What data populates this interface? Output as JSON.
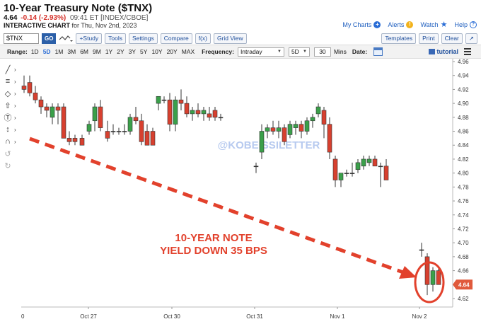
{
  "header": {
    "title": "10-Year Treasury Note ($TNX)",
    "last": "4.64",
    "change": "-0.14 (-2.93%)",
    "meta": "09:41 ET [INDEX/CBOE]",
    "chart_label": "INTERACTIVE CHART",
    "chart_date": "for Thu, Nov 2nd, 2023"
  },
  "top_links": {
    "my_charts": "My Charts",
    "alerts": "Alerts",
    "watch": "Watch",
    "help": "Help",
    "alert_glyph": "!",
    "help_glyph": "?"
  },
  "toolbar": {
    "symbol_value": "$TNX",
    "go_label": "GO",
    "study_label": "+Study",
    "tools_label": "Tools",
    "settings_label": "Settings",
    "compare_label": "Compare",
    "fx_label": "f(x)",
    "grid_view_label": "Grid View",
    "templates_label": "Templates",
    "print_label": "Print",
    "clear_label": "Clear",
    "expand_label": "↗"
  },
  "rangebar": {
    "range_label": "Range:",
    "ranges": [
      "1D",
      "5D",
      "1M",
      "3M",
      "6M",
      "9M",
      "1Y",
      "2Y",
      "3Y",
      "5Y",
      "10Y",
      "20Y",
      "MAX"
    ],
    "active_range": "5D",
    "frequency_label": "Frequency:",
    "frequency_value": "Intraday",
    "period_value": "5D",
    "interval_value": "30",
    "interval_unit": "Mins",
    "date_label": "Date:",
    "tutorial_label": "tutorial"
  },
  "side_tools": [
    {
      "name": "trendline-tool-icon",
      "glyph": "╱"
    },
    {
      "name": "fib-tool-icon",
      "glyph": "≡"
    },
    {
      "name": "shape-tool-icon",
      "glyph": "◇"
    },
    {
      "name": "arrow-tool-icon",
      "glyph": "⇧"
    },
    {
      "name": "text-tool-icon",
      "glyph": "Ⓣ"
    },
    {
      "name": "measure-tool-icon",
      "glyph": "↕"
    },
    {
      "name": "magnet-tool-icon",
      "glyph": "∩"
    },
    {
      "name": "undo-tool-icon",
      "glyph": "↺"
    },
    {
      "name": "redo-tool-icon",
      "glyph": "↻"
    }
  ],
  "chart_data": {
    "type": "candlestick",
    "y_ticks": [
      4.62,
      4.64,
      4.66,
      4.68,
      4.7,
      4.72,
      4.74,
      4.76,
      4.78,
      4.8,
      4.82,
      4.84,
      4.86,
      4.88,
      4.9,
      4.92,
      4.94,
      4.96
    ],
    "ylim": [
      4.61,
      4.97
    ],
    "x_labels": [
      "Oct 27",
      "Oct 30",
      "Oct 31",
      "Nov 1",
      "Nov 2"
    ],
    "x_first_label": "0",
    "last_price_badge": "4.64",
    "watermark": "@KOBEISSILETTER",
    "annotation_line1": "10-YEAR NOTE",
    "annotation_line2": "YIELD DOWN 35 BPS",
    "candles": [
      {
        "o": 4.925,
        "h": 4.94,
        "l": 4.915,
        "c": 4.92
      },
      {
        "o": 4.93,
        "h": 4.94,
        "l": 4.91,
        "c": 4.915
      },
      {
        "o": 4.915,
        "h": 4.925,
        "l": 4.9,
        "c": 4.905
      },
      {
        "o": 4.905,
        "h": 4.91,
        "l": 4.885,
        "c": 4.895
      },
      {
        "o": 4.895,
        "h": 4.9,
        "l": 4.88,
        "c": 4.89
      },
      {
        "o": 4.88,
        "h": 4.9,
        "l": 4.87,
        "c": 4.895
      },
      {
        "o": 4.895,
        "h": 4.9,
        "l": 4.87,
        "c": 4.89
      },
      {
        "o": 4.895,
        "h": 4.9,
        "l": 4.85,
        "c": 4.85
      },
      {
        "o": 4.85,
        "h": 4.86,
        "l": 4.84,
        "c": 4.845
      },
      {
        "o": 4.85,
        "h": 4.855,
        "l": 4.84,
        "c": 4.845
      },
      {
        "o": 4.85,
        "h": 4.855,
        "l": 4.84,
        "c": 4.84
      },
      {
        "o": 4.86,
        "h": 4.875,
        "l": 4.855,
        "c": 4.87
      },
      {
        "o": 4.875,
        "h": 4.9,
        "l": 4.86,
        "c": 4.895
      },
      {
        "o": 4.895,
        "h": 4.905,
        "l": 4.86,
        "c": 4.865
      },
      {
        "o": 4.86,
        "h": 4.875,
        "l": 4.845,
        "c": 4.85
      },
      {
        "o": 4.86,
        "h": 4.87,
        "l": 4.855,
        "c": 4.86
      },
      {
        "o": 4.86,
        "h": 4.865,
        "l": 4.855,
        "c": 4.86
      },
      {
        "o": 4.86,
        "h": 4.87,
        "l": 4.855,
        "c": 4.86
      },
      {
        "o": 4.86,
        "h": 4.885,
        "l": 4.855,
        "c": 4.88
      },
      {
        "o": 4.88,
        "h": 4.895,
        "l": 4.87,
        "c": 4.875
      },
      {
        "o": 4.875,
        "h": 4.885,
        "l": 4.84,
        "c": 4.845
      },
      {
        "o": 4.86,
        "h": 4.87,
        "l": 4.84,
        "c": 4.84
      },
      {
        "o": 4.86,
        "h": 4.865,
        "l": 4.84,
        "c": 4.84
      },
      {
        "o": 4.9,
        "h": 4.91,
        "l": 4.89,
        "c": 4.91
      },
      {
        "o": 4.905,
        "h": 4.91,
        "l": 4.9,
        "c": 4.905
      },
      {
        "o": 4.905,
        "h": 4.915,
        "l": 4.86,
        "c": 4.87
      },
      {
        "o": 4.87,
        "h": 4.91,
        "l": 4.86,
        "c": 4.905
      },
      {
        "o": 4.905,
        "h": 4.92,
        "l": 4.89,
        "c": 4.9
      },
      {
        "o": 4.9,
        "h": 4.91,
        "l": 4.88,
        "c": 4.885
      },
      {
        "o": 4.885,
        "h": 4.895,
        "l": 4.875,
        "c": 4.89
      },
      {
        "o": 4.89,
        "h": 4.9,
        "l": 4.88,
        "c": 4.885
      },
      {
        "o": 4.885,
        "h": 4.895,
        "l": 4.875,
        "c": 4.89
      },
      {
        "o": 4.885,
        "h": 4.895,
        "l": 4.875,
        "c": 4.88
      },
      {
        "o": 4.89,
        "h": 4.895,
        "l": 4.875,
        "c": 4.88
      },
      {
        "o": 4.88,
        "h": 4.885,
        "l": 4.875,
        "c": 4.88
      },
      {
        "o": 4.81,
        "h": 4.815,
        "l": 4.8,
        "c": 4.81
      },
      {
        "o": 4.83,
        "h": 4.87,
        "l": 4.82,
        "c": 4.86
      },
      {
        "o": 4.86,
        "h": 4.87,
        "l": 4.85,
        "c": 4.865
      },
      {
        "o": 4.865,
        "h": 4.875,
        "l": 4.855,
        "c": 4.86
      },
      {
        "o": 4.86,
        "h": 4.875,
        "l": 4.85,
        "c": 4.865
      },
      {
        "o": 4.865,
        "h": 4.87,
        "l": 4.84,
        "c": 4.845
      },
      {
        "o": 4.855,
        "h": 4.875,
        "l": 4.85,
        "c": 4.87
      },
      {
        "o": 4.865,
        "h": 4.875,
        "l": 4.855,
        "c": 4.87
      },
      {
        "o": 4.87,
        "h": 4.875,
        "l": 4.85,
        "c": 4.86
      },
      {
        "o": 4.86,
        "h": 4.88,
        "l": 4.855,
        "c": 4.875
      },
      {
        "o": 4.875,
        "h": 4.885,
        "l": 4.865,
        "c": 4.88
      },
      {
        "o": 4.885,
        "h": 4.9,
        "l": 4.88,
        "c": 4.895
      },
      {
        "o": 4.89,
        "h": 4.895,
        "l": 4.85,
        "c": 4.87
      },
      {
        "o": 4.87,
        "h": 4.88,
        "l": 4.82,
        "c": 4.83
      },
      {
        "o": 4.82,
        "h": 4.825,
        "l": 4.78,
        "c": 4.79
      },
      {
        "o": 4.79,
        "h": 4.8,
        "l": 4.78,
        "c": 4.8
      },
      {
        "o": 4.8,
        "h": 4.805,
        "l": 4.795,
        "c": 4.8
      },
      {
        "o": 4.8,
        "h": 4.815,
        "l": 4.795,
        "c": 4.8
      },
      {
        "o": 4.805,
        "h": 4.82,
        "l": 4.8,
        "c": 4.815
      },
      {
        "o": 4.81,
        "h": 4.825,
        "l": 4.805,
        "c": 4.82
      },
      {
        "o": 4.815,
        "h": 4.825,
        "l": 4.81,
        "c": 4.82
      },
      {
        "o": 4.82,
        "h": 4.825,
        "l": 4.81,
        "c": 4.81
      },
      {
        "o": 4.81,
        "h": 4.815,
        "l": 4.78,
        "c": 4.81
      },
      {
        "o": 4.81,
        "h": 4.82,
        "l": 4.79,
        "c": 4.79
      },
      {
        "o": 4.69,
        "h": 4.7,
        "l": 4.68,
        "c": 4.69
      },
      {
        "o": 4.68,
        "h": 4.685,
        "l": 4.625,
        "c": 4.64
      },
      {
        "o": 4.64,
        "h": 4.665,
        "l": 4.63,
        "c": 4.66
      },
      {
        "o": 4.66,
        "h": 4.665,
        "l": 4.64,
        "c": 4.64
      }
    ],
    "candle_positions": [
      34,
      42,
      50,
      58,
      66,
      74,
      82,
      90,
      98,
      106,
      116,
      126,
      134,
      142,
      152,
      160,
      168,
      176,
      184,
      192,
      200,
      208,
      216,
      224,
      232,
      240,
      248,
      256,
      264,
      272,
      280,
      288,
      296,
      304,
      312,
      362,
      370,
      378,
      386,
      394,
      402,
      410,
      418,
      426,
      434,
      442,
      450,
      458,
      466,
      474,
      482,
      490,
      498,
      506,
      514,
      522,
      530,
      538,
      546,
      596,
      604,
      612,
      620
    ]
  }
}
